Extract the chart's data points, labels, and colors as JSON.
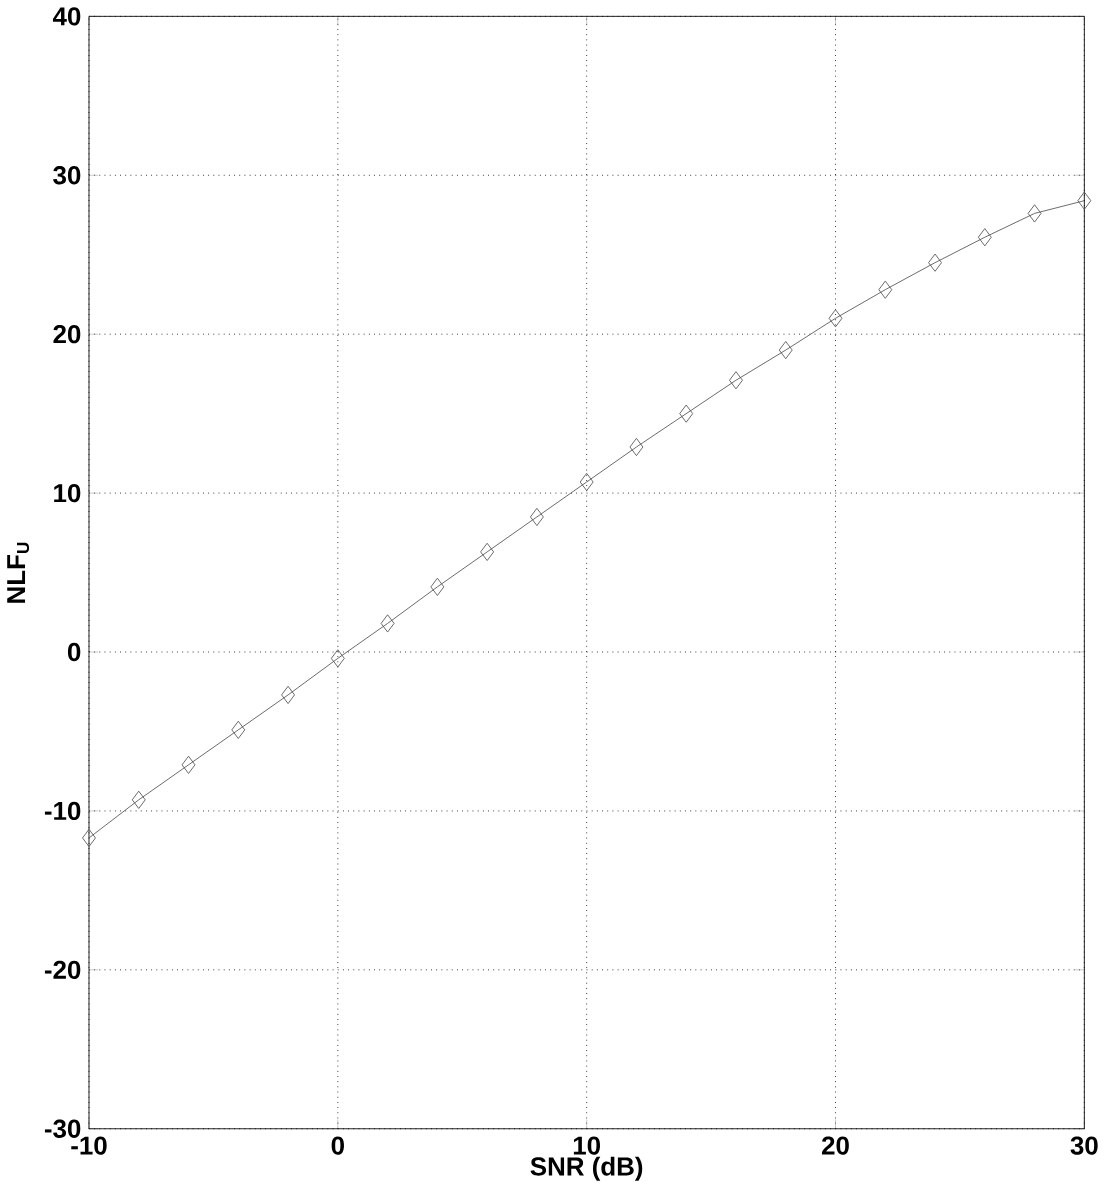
{
  "chart_data": {
    "type": "line",
    "xlabel": "SNR (dB)",
    "ylabel": "NLF$_{U}$",
    "x": [
      -10,
      -8,
      -6,
      -4,
      -2,
      0,
      2,
      4,
      6,
      8,
      10,
      12,
      14,
      16,
      18,
      20,
      22,
      24,
      26,
      28,
      30
    ],
    "series": [
      {
        "color": "#555555",
        "values": [
          -11.7,
          -9.3,
          -7.1,
          -4.9,
          -2.7,
          -0.4,
          1.8,
          4.1,
          6.3,
          8.5,
          10.7,
          12.9,
          15.0,
          17.1,
          19.0,
          21.0,
          22.8,
          24.5,
          26.1,
          27.6,
          28.4
        ]
      }
    ],
    "xlim": [
      -10,
      30
    ],
    "ylim": [
      -30,
      40
    ],
    "xticks": [
      -10,
      0,
      10,
      20,
      30
    ],
    "yticks": [
      -30,
      -20,
      -10,
      0,
      10,
      20,
      30,
      40
    ],
    "grid": true,
    "marker": "diamond",
    "line_style": "solid"
  }
}
